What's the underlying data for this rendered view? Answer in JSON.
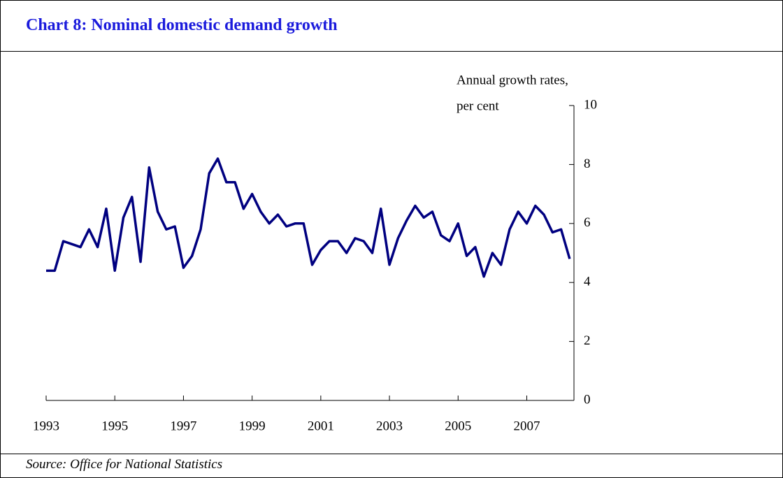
{
  "chart_data": {
    "type": "line",
    "title": "Chart 8: Nominal domestic demand growth",
    "y_label": [
      "Annual growth rates,",
      "per cent"
    ],
    "source": "Source: Office for National Statistics",
    "categories": [
      "1993",
      null,
      null,
      null,
      null,
      null,
      null,
      null,
      "1995",
      null,
      null,
      null,
      null,
      null,
      null,
      null,
      "1997",
      null,
      null,
      null,
      null,
      null,
      null,
      null,
      "1999",
      null,
      null,
      null,
      null,
      null,
      null,
      null,
      "2001",
      null,
      null,
      null,
      null,
      null,
      null,
      null,
      "2003",
      null,
      null,
      null,
      null,
      null,
      null,
      null,
      "2005",
      null,
      null,
      null,
      null,
      null,
      null,
      null,
      "2007",
      null,
      null,
      null,
      null,
      null
    ],
    "series": [
      {
        "color": "#000080",
        "values": [
          4.4,
          4.4,
          5.4,
          5.3,
          5.2,
          5.8,
          5.2,
          6.5,
          4.4,
          6.2,
          6.9,
          4.7,
          7.9,
          6.4,
          5.8,
          5.9,
          4.5,
          4.9,
          5.8,
          7.7,
          8.2,
          7.4,
          7.4,
          6.5,
          7.0,
          6.4,
          6.0,
          6.3,
          5.9,
          6.0,
          6.0,
          4.6,
          5.1,
          5.4,
          5.4,
          5.0,
          5.5,
          5.4,
          5.0,
          6.5,
          4.6,
          5.5,
          6.1,
          6.6,
          6.2,
          6.4,
          5.6,
          5.4,
          6.0,
          4.9,
          5.2,
          4.2,
          5.0,
          4.6,
          5.8,
          6.4,
          6.0,
          6.6,
          6.3,
          5.7,
          5.8,
          4.8
        ]
      }
    ],
    "ylim": [
      0,
      10
    ],
    "yticks": [
      0,
      2,
      4,
      6,
      8,
      10
    ],
    "grid": false
  }
}
